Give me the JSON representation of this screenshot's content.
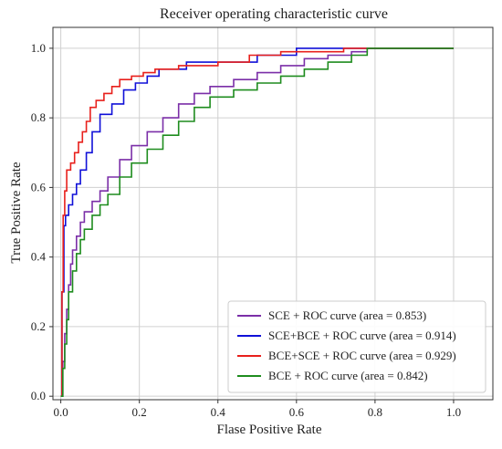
{
  "chart_data": {
    "type": "line",
    "title": "Receiver operating characteristic curve",
    "xlabel": "Flase Positive Rate",
    "ylabel": "True Positive Rate",
    "xlim": [
      -0.02,
      1.1
    ],
    "ylim": [
      -0.01,
      1.06
    ],
    "xticks": [
      0.0,
      0.2,
      0.4,
      0.6,
      0.8,
      1.0
    ],
    "yticks": [
      0.0,
      0.2,
      0.4,
      0.6,
      0.8,
      1.0
    ],
    "xtick_labels": [
      "0.0",
      "0.2",
      "0.4",
      "0.6",
      "0.8",
      "1.0"
    ],
    "ytick_labels": [
      "0.0",
      "0.2",
      "0.4",
      "0.6",
      "0.8",
      "1.0"
    ],
    "grid": true,
    "legend_position": "bottom-right",
    "series": [
      {
        "name": "SCE + ROC curve (area = 0.853)",
        "color": "#7B2FA8",
        "x": [
          0.0,
          0.005,
          0.005,
          0.01,
          0.01,
          0.015,
          0.015,
          0.02,
          0.02,
          0.025,
          0.025,
          0.03,
          0.03,
          0.04,
          0.04,
          0.05,
          0.05,
          0.06,
          0.06,
          0.08,
          0.08,
          0.1,
          0.1,
          0.12,
          0.12,
          0.15,
          0.15,
          0.18,
          0.18,
          0.22,
          0.22,
          0.26,
          0.26,
          0.3,
          0.3,
          0.34,
          0.34,
          0.38,
          0.38,
          0.44,
          0.44,
          0.5,
          0.5,
          0.56,
          0.56,
          0.62,
          0.62,
          0.68,
          0.68,
          0.74,
          0.74,
          0.78,
          0.78,
          1.0
        ],
        "y": [
          0.0,
          0.0,
          0.1,
          0.1,
          0.18,
          0.18,
          0.25,
          0.25,
          0.32,
          0.32,
          0.38,
          0.38,
          0.42,
          0.42,
          0.46,
          0.46,
          0.5,
          0.5,
          0.53,
          0.53,
          0.56,
          0.56,
          0.59,
          0.59,
          0.63,
          0.63,
          0.68,
          0.68,
          0.72,
          0.72,
          0.76,
          0.76,
          0.8,
          0.8,
          0.84,
          0.84,
          0.87,
          0.87,
          0.89,
          0.89,
          0.91,
          0.91,
          0.93,
          0.93,
          0.95,
          0.95,
          0.97,
          0.97,
          0.98,
          0.98,
          0.99,
          0.99,
          1.0,
          1.0
        ]
      },
      {
        "name": "SCE+BCE + ROC curve (area = 0.914)",
        "color": "#1010D8",
        "x": [
          0.0,
          0.003,
          0.003,
          0.008,
          0.008,
          0.012,
          0.012,
          0.02,
          0.02,
          0.03,
          0.03,
          0.04,
          0.04,
          0.05,
          0.05,
          0.065,
          0.065,
          0.08,
          0.08,
          0.1,
          0.1,
          0.13,
          0.13,
          0.16,
          0.16,
          0.19,
          0.19,
          0.22,
          0.22,
          0.25,
          0.25,
          0.32,
          0.32,
          0.5,
          0.5,
          0.6,
          0.6,
          0.78,
          0.78,
          1.0
        ],
        "y": [
          0.0,
          0.0,
          0.3,
          0.3,
          0.49,
          0.49,
          0.52,
          0.52,
          0.55,
          0.55,
          0.58,
          0.58,
          0.61,
          0.61,
          0.65,
          0.65,
          0.7,
          0.7,
          0.76,
          0.76,
          0.81,
          0.81,
          0.84,
          0.84,
          0.88,
          0.88,
          0.9,
          0.9,
          0.92,
          0.92,
          0.94,
          0.94,
          0.96,
          0.96,
          0.98,
          0.98,
          1.0,
          1.0,
          1.0,
          1.0
        ]
      },
      {
        "name": "BCE+SCE + ROC curve (area = 0.929)",
        "color": "#E8201C",
        "x": [
          0.0,
          0.003,
          0.003,
          0.006,
          0.006,
          0.01,
          0.01,
          0.015,
          0.015,
          0.025,
          0.025,
          0.035,
          0.035,
          0.045,
          0.045,
          0.055,
          0.055,
          0.065,
          0.065,
          0.075,
          0.075,
          0.09,
          0.09,
          0.11,
          0.11,
          0.13,
          0.13,
          0.15,
          0.15,
          0.18,
          0.18,
          0.21,
          0.21,
          0.24,
          0.24,
          0.3,
          0.3,
          0.4,
          0.4,
          0.48,
          0.48,
          0.56,
          0.56,
          0.72,
          0.72,
          1.0
        ],
        "y": [
          0.0,
          0.0,
          0.3,
          0.3,
          0.52,
          0.52,
          0.59,
          0.59,
          0.65,
          0.65,
          0.67,
          0.67,
          0.7,
          0.7,
          0.73,
          0.73,
          0.76,
          0.76,
          0.79,
          0.79,
          0.83,
          0.83,
          0.85,
          0.85,
          0.87,
          0.87,
          0.89,
          0.89,
          0.91,
          0.91,
          0.92,
          0.92,
          0.93,
          0.93,
          0.94,
          0.94,
          0.95,
          0.95,
          0.96,
          0.96,
          0.98,
          0.98,
          0.99,
          0.99,
          1.0,
          1.0
        ]
      },
      {
        "name": "BCE + ROC curve (area = 0.842)",
        "color": "#1E8C1E",
        "x": [
          0.0,
          0.005,
          0.005,
          0.01,
          0.01,
          0.015,
          0.015,
          0.02,
          0.02,
          0.03,
          0.03,
          0.04,
          0.04,
          0.05,
          0.05,
          0.06,
          0.06,
          0.08,
          0.08,
          0.1,
          0.1,
          0.12,
          0.12,
          0.15,
          0.15,
          0.18,
          0.18,
          0.22,
          0.22,
          0.26,
          0.26,
          0.3,
          0.3,
          0.34,
          0.34,
          0.38,
          0.38,
          0.44,
          0.44,
          0.5,
          0.5,
          0.56,
          0.56,
          0.62,
          0.62,
          0.68,
          0.68,
          0.74,
          0.74,
          0.78,
          0.78,
          1.0
        ],
        "y": [
          0.0,
          0.0,
          0.08,
          0.08,
          0.15,
          0.15,
          0.22,
          0.22,
          0.3,
          0.3,
          0.36,
          0.36,
          0.41,
          0.41,
          0.45,
          0.45,
          0.48,
          0.48,
          0.52,
          0.52,
          0.55,
          0.55,
          0.58,
          0.58,
          0.63,
          0.63,
          0.67,
          0.67,
          0.71,
          0.71,
          0.75,
          0.75,
          0.79,
          0.79,
          0.83,
          0.83,
          0.86,
          0.86,
          0.88,
          0.88,
          0.9,
          0.9,
          0.92,
          0.92,
          0.94,
          0.94,
          0.96,
          0.96,
          0.98,
          0.98,
          1.0,
          1.0
        ]
      }
    ]
  }
}
